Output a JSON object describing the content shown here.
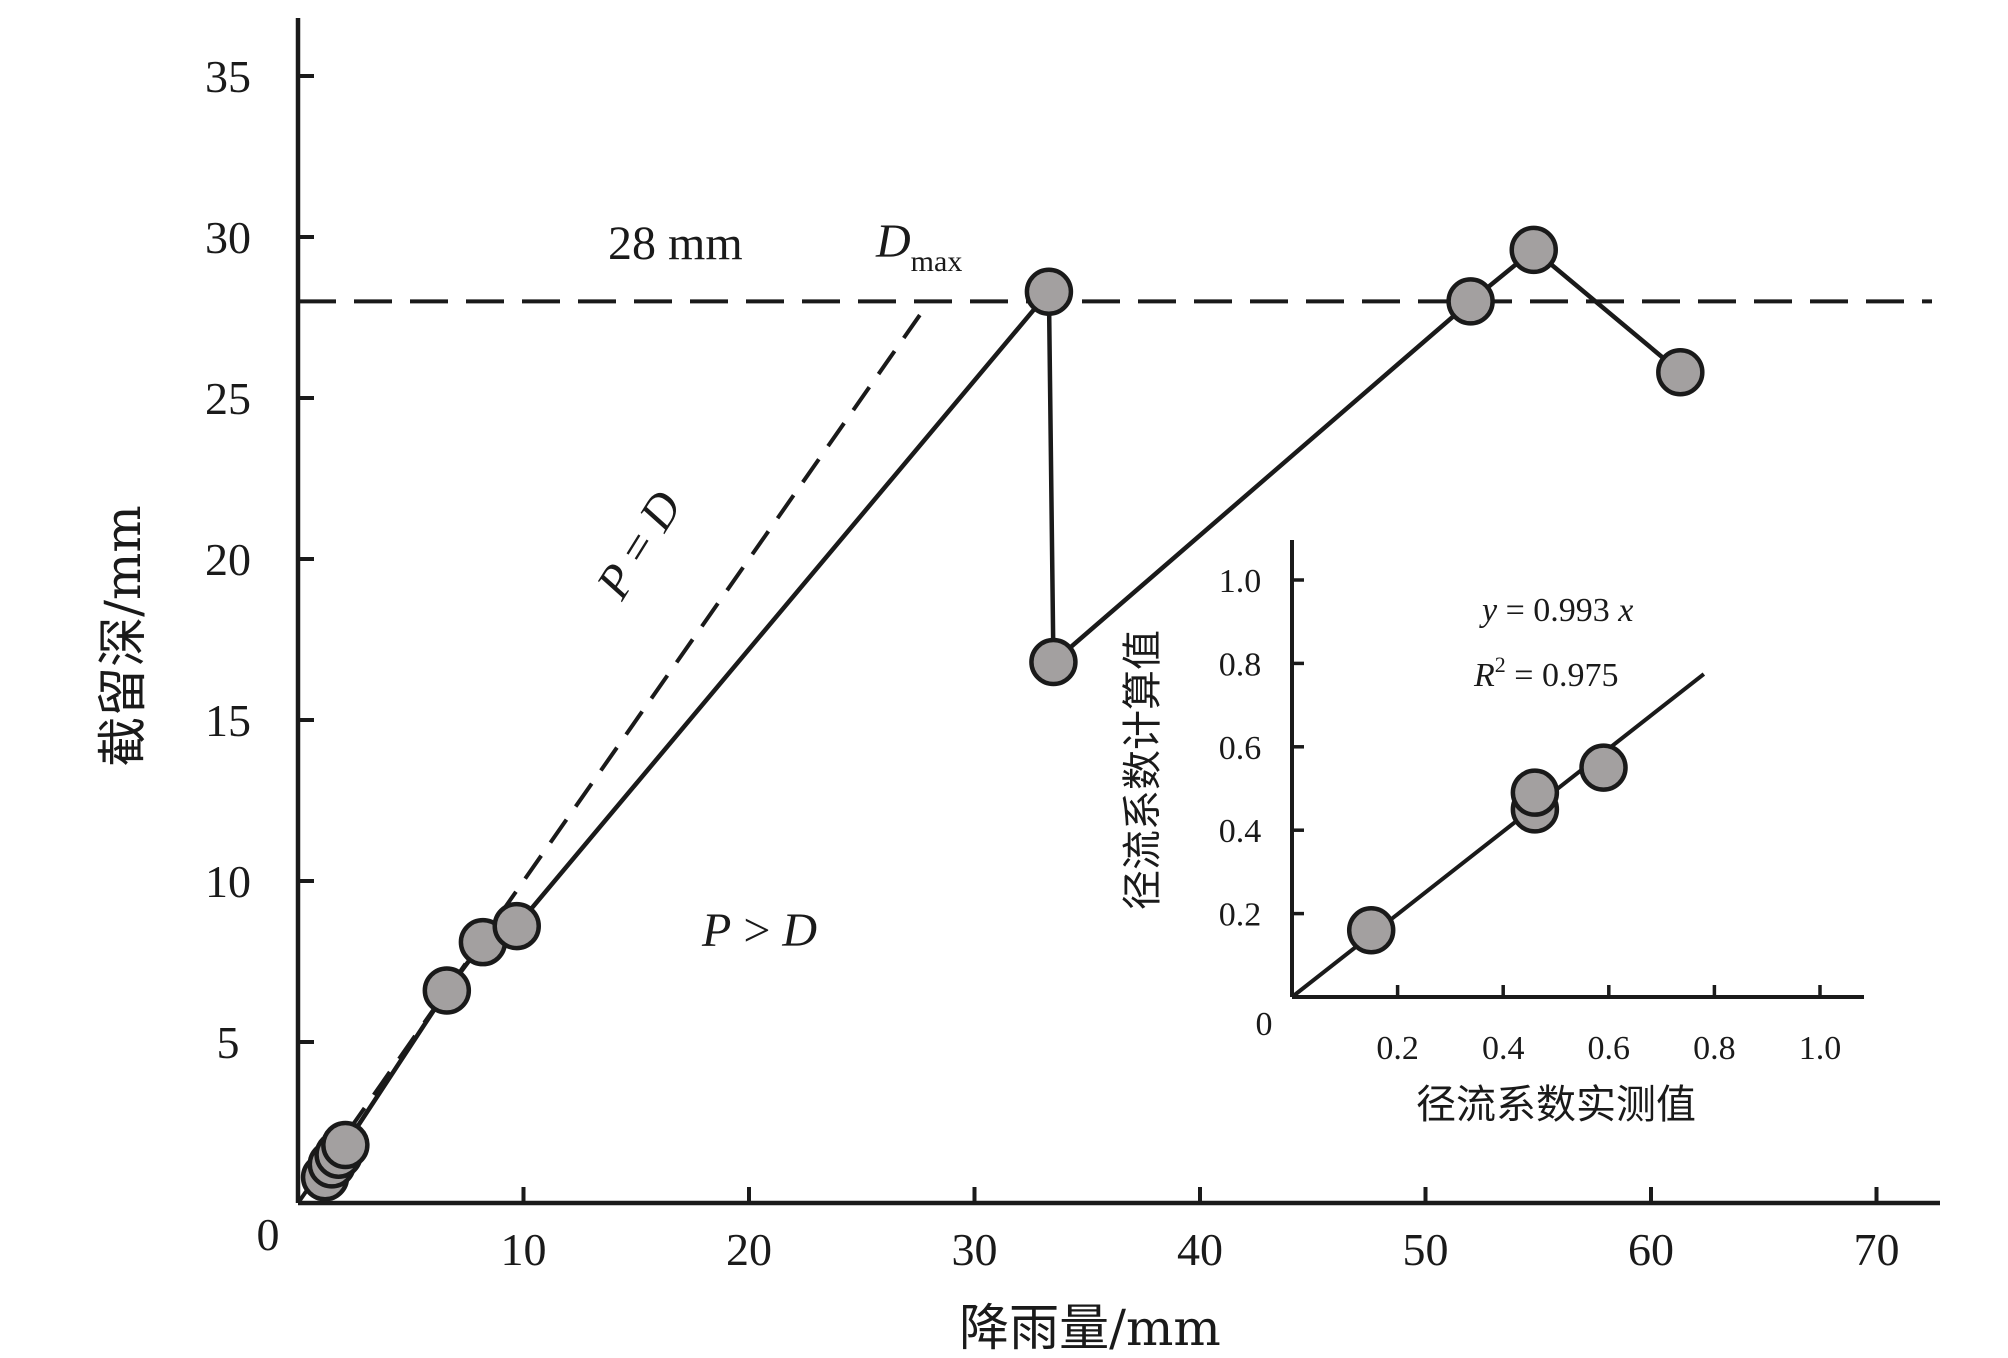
{
  "chart_data": [
    {
      "type": "line",
      "title": "",
      "xlabel": "降雨量/mm",
      "ylabel": "截留深/mm",
      "xlim": [
        0,
        70
      ],
      "ylim": [
        0,
        35
      ],
      "x_ticks": [
        10,
        20,
        30,
        40,
        50,
        60,
        70
      ],
      "y_ticks": [
        5,
        10,
        15,
        20,
        25,
        30,
        35
      ],
      "origin_label": "0",
      "grid": false,
      "legend": "none",
      "series": [
        {
          "points": [
            {
              "x": 1.2,
              "y": 0.8
            },
            {
              "x": 1.5,
              "y": 1.2
            },
            {
              "x": 1.8,
              "y": 1.5
            },
            {
              "x": 2.1,
              "y": 1.8
            },
            {
              "x": 6.6,
              "y": 6.6
            },
            {
              "x": 8.2,
              "y": 8.1
            },
            {
              "x": 9.7,
              "y": 8.6
            },
            {
              "x": 33.3,
              "y": 28.3
            },
            {
              "x": 33.5,
              "y": 16.8
            },
            {
              "x": 52.0,
              "y": 28.0
            },
            {
              "x": 54.8,
              "y": 29.6
            },
            {
              "x": 61.3,
              "y": 25.8
            }
          ]
        }
      ],
      "reference_lines": [
        {
          "label": "P = D",
          "from": {
            "x": 0,
            "y": 0
          },
          "to": {
            "x": 28,
            "y": 28
          },
          "style": "dashed"
        },
        {
          "label": "28 mm",
          "y": 28,
          "style": "dashed"
        }
      ],
      "annotations": {
        "threshold": "28 mm",
        "dmax_main": "D",
        "dmax_sub": "max",
        "equality_p": "P",
        "equality_op": " = ",
        "equality_d": "D",
        "region_p": "P",
        "region_op": " > ",
        "region_d": "D"
      },
      "colors": {
        "marker_fill": "#a3a0a0",
        "line": "#1a1a1a"
      }
    },
    {
      "type": "scatter",
      "title": "",
      "xlabel": "径流系数实测值",
      "ylabel": "径流系数计算值",
      "xlim": [
        0,
        1.08
      ],
      "ylim": [
        0,
        1.0
      ],
      "x_ticks": [
        "0.2",
        "0.4",
        "0.6",
        "0.8",
        "1.0"
      ],
      "y_ticks": [
        "0.2",
        "0.4",
        "0.6",
        "0.8",
        "1.0"
      ],
      "origin_label": "0",
      "points": [
        {
          "x": 0.15,
          "y": 0.16
        },
        {
          "x": 0.46,
          "y": 0.45
        },
        {
          "x": 0.46,
          "y": 0.49
        },
        {
          "x": 0.59,
          "y": 0.55
        }
      ],
      "fit_line": {
        "slope": 0.993,
        "from_x": 0,
        "to_x": 0.78
      },
      "equation": {
        "y_var": "y",
        "rhs": " = 0.993 ",
        "x_var": "x"
      },
      "r_squared": {
        "var": "R",
        "sup": "2",
        "rhs": " = 0.975"
      }
    }
  ]
}
